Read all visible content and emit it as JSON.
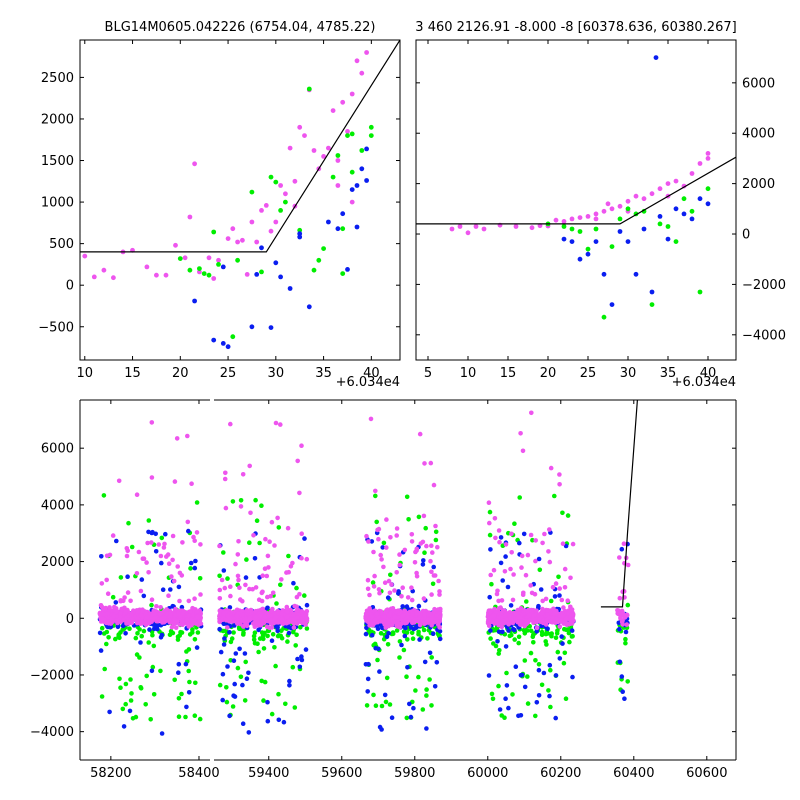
{
  "chart_data": [
    {
      "type": "scatter",
      "title": "BLG14M0605.042226 (6754.04, 4785.22)",
      "xlabel": "",
      "ylabel": "",
      "x_offset_label": "+6.034e4",
      "xlim": [
        9.5,
        43
      ],
      "ylim": [
        -900,
        2950
      ],
      "xticks": [
        10,
        15,
        20,
        25,
        30,
        35,
        40
      ],
      "yticks": [
        -500,
        0,
        500,
        1000,
        1500,
        2000,
        2500
      ],
      "grid": false,
      "legend": "none",
      "model_line": {
        "x": [
          9.5,
          29,
          43
        ],
        "y": [
          400,
          400,
          2950
        ],
        "color": "#000000"
      },
      "series": [
        {
          "color": "#ee55ee",
          "points": [
            [
              10,
              350
            ],
            [
              11,
              100
            ],
            [
              12,
              180
            ],
            [
              13,
              90
            ],
            [
              14,
              400
            ],
            [
              15,
              420
            ],
            [
              16.5,
              220
            ],
            [
              17.5,
              120
            ],
            [
              18.5,
              120
            ],
            [
              19.5,
              480
            ],
            [
              20.5,
              330
            ],
            [
              21,
              820
            ],
            [
              21.5,
              1460
            ],
            [
              22,
              160
            ],
            [
              23,
              330
            ],
            [
              23.5,
              80
            ],
            [
              24,
              300
            ],
            [
              25,
              560
            ],
            [
              25.5,
              680
            ],
            [
              26,
              520
            ],
            [
              26.5,
              540
            ],
            [
              27,
              130
            ],
            [
              27.5,
              760
            ],
            [
              28,
              520
            ],
            [
              28.5,
              900
            ],
            [
              29,
              960
            ],
            [
              29.5,
              650
            ],
            [
              30,
              760
            ],
            [
              30.5,
              1200
            ],
            [
              31,
              1100
            ],
            [
              31.5,
              1650
            ],
            [
              32,
              950
            ],
            [
              32,
              1250
            ],
            [
              32.5,
              1900
            ],
            [
              33,
              1800
            ],
            [
              33.5,
              2350
            ],
            [
              34,
              1620
            ],
            [
              34.5,
              1400
            ],
            [
              35,
              1550
            ],
            [
              35.5,
              1650
            ],
            [
              36,
              2100
            ],
            [
              36.5,
              1500
            ],
            [
              37,
              2200
            ],
            [
              37.5,
              1850
            ],
            [
              38,
              2300
            ],
            [
              38.5,
              2700
            ],
            [
              39,
              2550
            ],
            [
              39.5,
              2800
            ],
            [
              38,
              1000
            ],
            [
              36.5,
              1200
            ]
          ]
        },
        {
          "color": "#00ee00",
          "points": [
            [
              20,
              320
            ],
            [
              21,
              180
            ],
            [
              22,
              200
            ],
            [
              22.5,
              140
            ],
            [
              23,
              120
            ],
            [
              23.5,
              640
            ],
            [
              24,
              250
            ],
            [
              25.5,
              -620
            ],
            [
              26,
              300
            ],
            [
              27.5,
              1120
            ],
            [
              28.5,
              160
            ],
            [
              29.5,
              1300
            ],
            [
              30,
              1240
            ],
            [
              30.5,
              900
            ],
            [
              31,
              1000
            ],
            [
              32.5,
              660
            ],
            [
              33.5,
              2360
            ],
            [
              34,
              180
            ],
            [
              34.5,
              300
            ],
            [
              35,
              440
            ],
            [
              36,
              1300
            ],
            [
              36.5,
              1560
            ],
            [
              37,
              680
            ],
            [
              37.5,
              1800
            ],
            [
              38,
              1360
            ],
            [
              38,
              1820
            ],
            [
              39,
              1620
            ],
            [
              40,
              1900
            ],
            [
              40,
              1800
            ],
            [
              37,
              140
            ]
          ]
        },
        {
          "color": "#0a1ef0",
          "points": [
            [
              21.5,
              -190
            ],
            [
              23.5,
              -660
            ],
            [
              24.5,
              -700
            ],
            [
              25,
              -740
            ],
            [
              24.5,
              220
            ],
            [
              27.5,
              -500
            ],
            [
              28,
              130
            ],
            [
              28.5,
              450
            ],
            [
              29.5,
              -510
            ],
            [
              30,
              270
            ],
            [
              30.5,
              100
            ],
            [
              31.5,
              -40
            ],
            [
              32.5,
              620
            ],
            [
              32.5,
              580
            ],
            [
              33.5,
              -260
            ],
            [
              35.5,
              760
            ],
            [
              36.5,
              680
            ],
            [
              37,
              860
            ],
            [
              37.5,
              190
            ],
            [
              38,
              1150
            ],
            [
              38.5,
              1200
            ],
            [
              39,
              1400
            ],
            [
              39.5,
              1640
            ],
            [
              39.5,
              1260
            ],
            [
              38.5,
              700
            ]
          ]
        }
      ]
    },
    {
      "type": "scatter",
      "title": "3 460 2126.91 -8.000 -8 [60378.636, 60380.267]",
      "xlabel": "",
      "ylabel": "",
      "x_offset_label": "+6.034e4",
      "xlim": [
        3.5,
        43.5
      ],
      "ylim": [
        -5000,
        7700
      ],
      "xticks": [
        5,
        10,
        15,
        20,
        25,
        30,
        35,
        40
      ],
      "yticks": [
        -4000,
        -2000,
        0,
        2000,
        4000,
        6000
      ],
      "grid": false,
      "legend": "none",
      "model_line": {
        "x": [
          3.5,
          29,
          43.5
        ],
        "y": [
          400,
          400,
          3050
        ],
        "color": "#000000"
      },
      "series": [
        {
          "color": "#ee55ee",
          "points": [
            [
              8,
              200
            ],
            [
              9,
              300
            ],
            [
              10,
              50
            ],
            [
              11,
              300
            ],
            [
              12,
              200
            ],
            [
              14,
              350
            ],
            [
              16,
              300
            ],
            [
              18,
              250
            ],
            [
              19,
              330
            ],
            [
              20,
              320
            ],
            [
              21,
              550
            ],
            [
              22,
              500
            ],
            [
              23,
              600
            ],
            [
              24,
              650
            ],
            [
              25,
              700
            ],
            [
              26,
              800
            ],
            [
              27,
              900
            ],
            [
              27.5,
              1200
            ],
            [
              28,
              1000
            ],
            [
              29,
              1100
            ],
            [
              30,
              1300
            ],
            [
              31,
              1500
            ],
            [
              32,
              1400
            ],
            [
              33,
              1600
            ],
            [
              34,
              1800
            ],
            [
              35,
              2000
            ],
            [
              36,
              2100
            ],
            [
              37,
              1900
            ],
            [
              38,
              2400
            ],
            [
              39,
              2800
            ],
            [
              40,
              3200
            ],
            [
              40,
              3000
            ],
            [
              30,
              900
            ],
            [
              26,
              600
            ],
            [
              35,
              1500
            ]
          ]
        },
        {
          "color": "#00ee00",
          "points": [
            [
              20,
              400
            ],
            [
              22,
              300
            ],
            [
              23,
              200
            ],
            [
              24,
              100
            ],
            [
              25,
              -600
            ],
            [
              26,
              200
            ],
            [
              27,
              -3300
            ],
            [
              28,
              -500
            ],
            [
              29,
              600
            ],
            [
              30,
              1000
            ],
            [
              31,
              800
            ],
            [
              32,
              900
            ],
            [
              33,
              -2800
            ],
            [
              34,
              400
            ],
            [
              35,
              300
            ],
            [
              36,
              -300
            ],
            [
              37,
              1400
            ],
            [
              38,
              900
            ],
            [
              39,
              -2300
            ],
            [
              40,
              1800
            ]
          ]
        },
        {
          "color": "#0a1ef0",
          "points": [
            [
              22,
              -200
            ],
            [
              23,
              -300
            ],
            [
              24,
              -1000
            ],
            [
              25,
              -800
            ],
            [
              26,
              -300
            ],
            [
              27,
              -1600
            ],
            [
              28,
              -2800
            ],
            [
              29,
              100
            ],
            [
              30,
              -300
            ],
            [
              31,
              -1600
            ],
            [
              32,
              200
            ],
            [
              33,
              -2300
            ],
            [
              33.5,
              7000
            ],
            [
              34,
              700
            ],
            [
              35,
              -200
            ],
            [
              36,
              1000
            ],
            [
              37,
              800
            ],
            [
              38,
              600
            ],
            [
              39,
              1400
            ],
            [
              40,
              1200
            ]
          ]
        }
      ]
    },
    {
      "type": "scatter",
      "title": "",
      "xlabel": "",
      "ylabel": "",
      "xlim": [
        58130,
        60680
      ],
      "ylim": [
        -5000,
        7700
      ],
      "xticks": [
        58200,
        58400,
        59400,
        59600,
        59800,
        60000,
        60200,
        60400,
        60600
      ],
      "yticks": [
        -4000,
        -2000,
        0,
        2000,
        4000,
        6000
      ],
      "grid": false,
      "legend": "none",
      "broken_axis_gap": [
        58425,
        59250
      ],
      "seasons": [
        {
          "start": 58175,
          "end": 58405,
          "seed": 11
        },
        {
          "start": 59265,
          "end": 59505,
          "seed": 23
        },
        {
          "start": 59665,
          "end": 59870,
          "seed": 37
        },
        {
          "start": 60000,
          "end": 60235,
          "seed": 53
        },
        {
          "start": 60355,
          "end": 60385,
          "seed": 71
        }
      ],
      "series_colors": {
        "blue": "#0a1ef0",
        "green": "#00ee00",
        "magenta": "#ee55ee"
      },
      "model_line": {
        "x": [
          60310,
          60369,
          60383,
          60410
        ],
        "y": [
          400,
          400,
          3050,
          7700
        ],
        "color": "#000000"
      }
    }
  ]
}
